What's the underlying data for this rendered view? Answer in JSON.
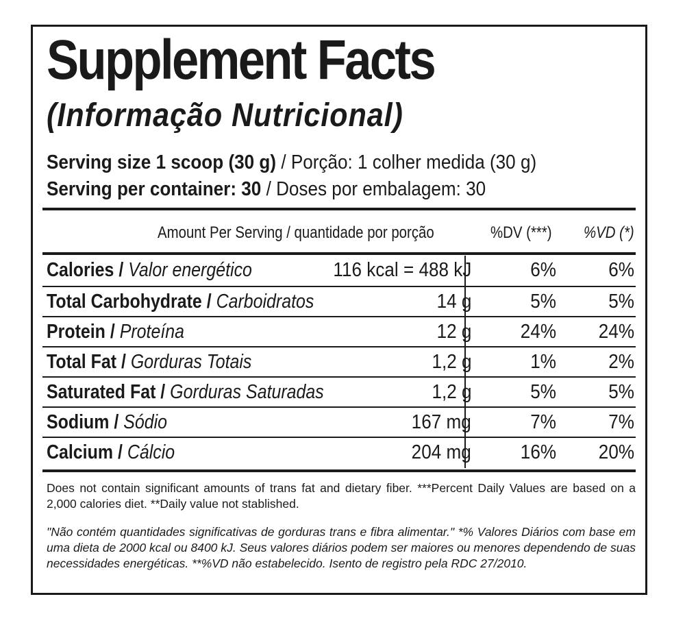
{
  "title": "Supplement Facts",
  "subtitle": "(Informação Nutricional)",
  "serving": {
    "size_en": "Serving size 1 scoop (30 g)",
    "size_pt": " / Porção: 1 colher medida (30 g)",
    "per_container_en": "Serving per container: 30",
    "per_container_pt": " / Doses por embalagem: 30"
  },
  "table": {
    "header_amount": "Amount Per Serving / quantidade por porção",
    "header_dv_en": "%DV (***)",
    "header_vd_pt": "%VD (*)",
    "rows": [
      {
        "name_en": "Calories",
        "name_pt": "Valor energético",
        "amount": "116 kcal = 488 kJ",
        "dv": "6%",
        "vd": "6%"
      },
      {
        "name_en": "Total Carbohydrate",
        "name_pt": "Carboidratos",
        "amount": "14 g",
        "dv": "5%",
        "vd": "5%"
      },
      {
        "name_en": "Protein",
        "name_pt": "Proteína",
        "amount": "12 g",
        "dv": "24%",
        "vd": "24%"
      },
      {
        "name_en": "Total Fat",
        "name_pt": "Gorduras Totais",
        "amount": "1,2 g",
        "dv": "1%",
        "vd": "2%"
      },
      {
        "name_en": "Saturated Fat",
        "name_pt": "Gorduras Saturadas",
        "amount": "1,2 g",
        "dv": "5%",
        "vd": "5%"
      },
      {
        "name_en": "Sodium",
        "name_pt": "Sódio",
        "amount": "167 mg",
        "dv": "7%",
        "vd": "7%"
      },
      {
        "name_en": "Calcium",
        "name_pt": "Cálcio",
        "amount": "204 mg",
        "dv": "16%",
        "vd": "20%"
      }
    ]
  },
  "footnote_en": "Does not contain significant amounts of trans fat and dietary fiber. ***Percent Daily Values are based on a 2,000 calories diet. **Daily value not stablished.",
  "footnote_pt": "\"Não contém quantidades significativas de gorduras trans e fibra alimentar.\" *% Valores Diários com base em uma dieta de 2000 kcal ou 8400 kJ. Seus valores diários podem ser maiores ou menores dependendo de suas necessidades energéticas. **%VD não estabelecido. Isento de registro pela RDC 27/2010."
}
